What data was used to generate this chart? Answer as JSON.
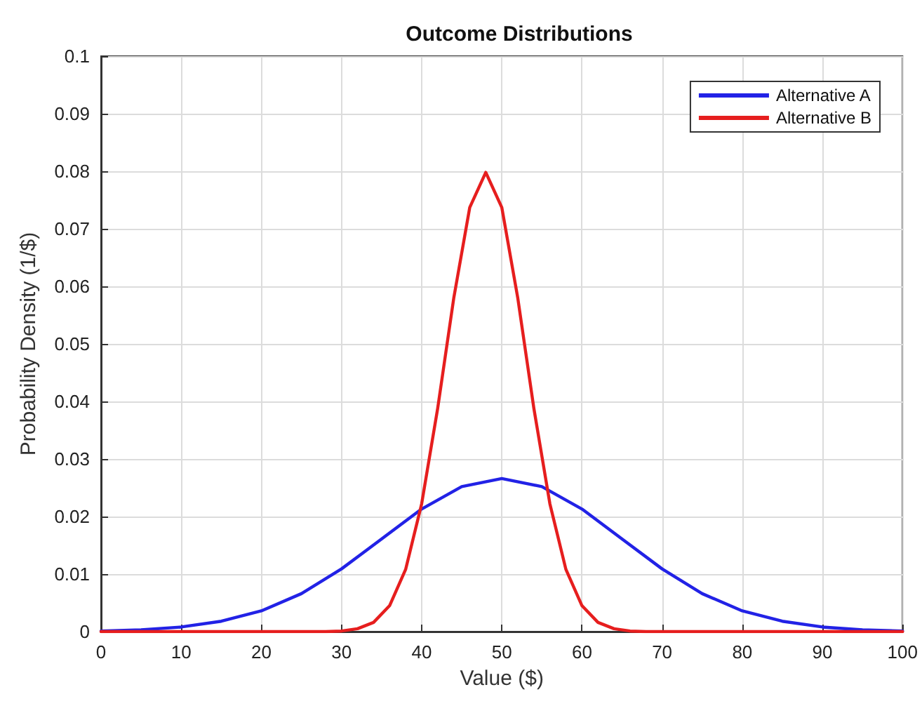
{
  "chart_data": {
    "type": "line",
    "title": "Outcome Distributions",
    "xlabel": "Value ($)",
    "ylabel": "Probability Density (1/$)",
    "series": [
      {
        "name": "Alternative A",
        "color": "#2222e6",
        "x": [
          0,
          5,
          10,
          15,
          20,
          25,
          30,
          35,
          40,
          45,
          50,
          55,
          60,
          65,
          70,
          75,
          80,
          85,
          90,
          95,
          100
        ],
        "values": [
          0.0001,
          0.0003,
          0.0008,
          0.0018,
          0.0036,
          0.0066,
          0.0109,
          0.0161,
          0.0213,
          0.0252,
          0.0266,
          0.0252,
          0.0213,
          0.0161,
          0.0109,
          0.0066,
          0.0036,
          0.0018,
          0.0008,
          0.0003,
          0.0001
        ]
      },
      {
        "name": "Alternative B",
        "color": "#e61e1e",
        "x": [
          0,
          10,
          20,
          28,
          30,
          32,
          34,
          36,
          38,
          40,
          42,
          44,
          46,
          48,
          50,
          52,
          54,
          56,
          58,
          60,
          62,
          64,
          66,
          68,
          70,
          80,
          90,
          100
        ],
        "values": [
          0,
          0,
          0,
          0,
          0.0001,
          0.0005,
          0.0016,
          0.0045,
          0.0108,
          0.0222,
          0.0388,
          0.0579,
          0.0737,
          0.0798,
          0.0737,
          0.0579,
          0.0388,
          0.0222,
          0.0108,
          0.0045,
          0.0016,
          0.0005,
          0.0001,
          0,
          0,
          0,
          0,
          0
        ]
      }
    ],
    "xlim": [
      0,
      100
    ],
    "xticks": [
      0,
      10,
      20,
      30,
      40,
      50,
      60,
      70,
      80,
      90,
      100
    ],
    "ylim": [
      0,
      0.1
    ],
    "yticks": [
      0,
      0.01,
      0.02,
      0.03,
      0.04,
      0.05,
      0.06,
      0.07,
      0.08,
      0.09,
      0.1
    ],
    "grid": true,
    "legend": "top right",
    "marker": "none",
    "line_style": "solid"
  }
}
